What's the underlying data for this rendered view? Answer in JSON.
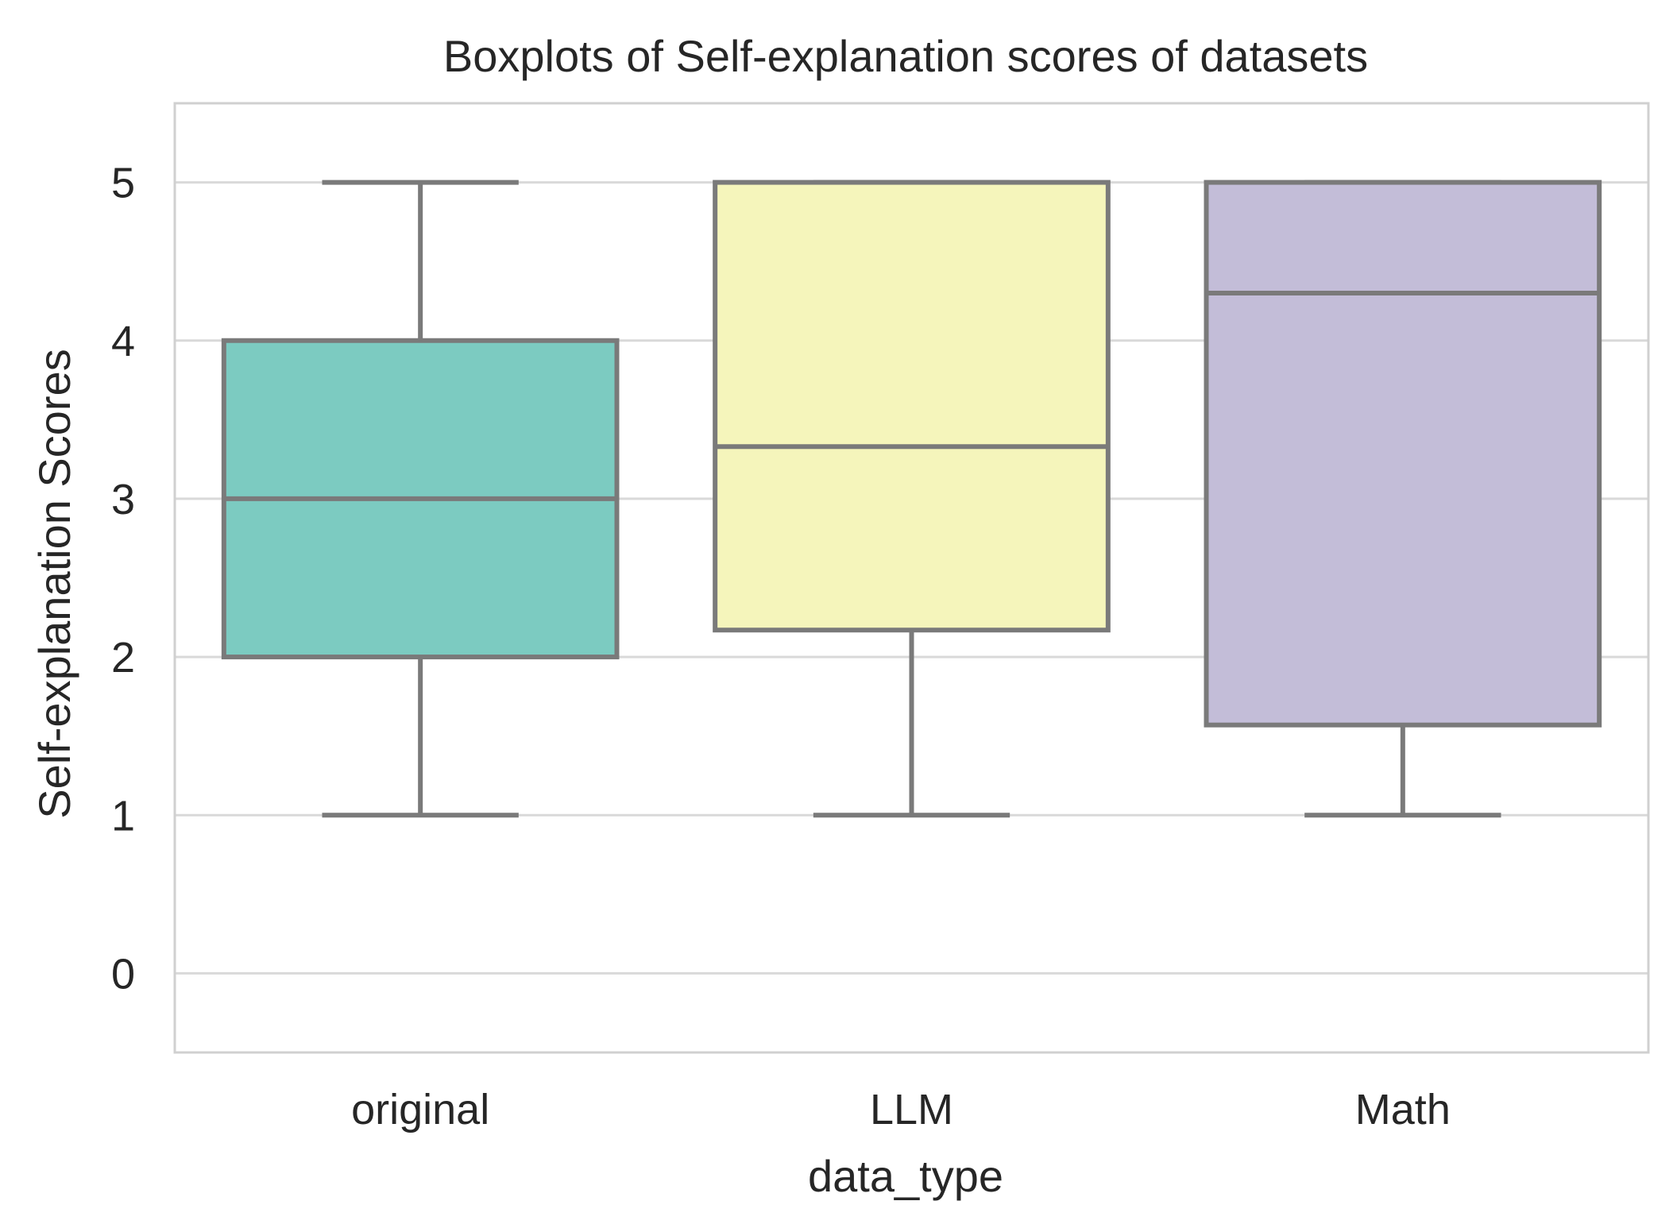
{
  "chart_data": {
    "type": "boxplot",
    "title": "Boxplots of Self-explanation scores of datasets",
    "xlabel": "data_type",
    "ylabel": "Self-explanation Scores",
    "ylim": [
      -0.5,
      5.5
    ],
    "yticks": [
      "0",
      "1",
      "2",
      "3",
      "4",
      "5"
    ],
    "grid": true,
    "categories": [
      "original",
      "LLM",
      "Math"
    ],
    "boxes": [
      {
        "category": "original",
        "whisker_low": 1,
        "q1": 2.0,
        "median": 3.0,
        "q3": 4.0,
        "whisker_high": 5,
        "color": "#7ccbc1"
      },
      {
        "category": "LLM",
        "whisker_low": 1,
        "q1": 2.17,
        "median": 3.33,
        "q3": 5.0,
        "whisker_high": 5,
        "color": "#f5f5bb"
      },
      {
        "category": "Math",
        "whisker_low": 1,
        "q1": 1.57,
        "median": 4.3,
        "q3": 5.0,
        "whisker_high": 5,
        "color": "#c3bdd8"
      }
    ]
  }
}
